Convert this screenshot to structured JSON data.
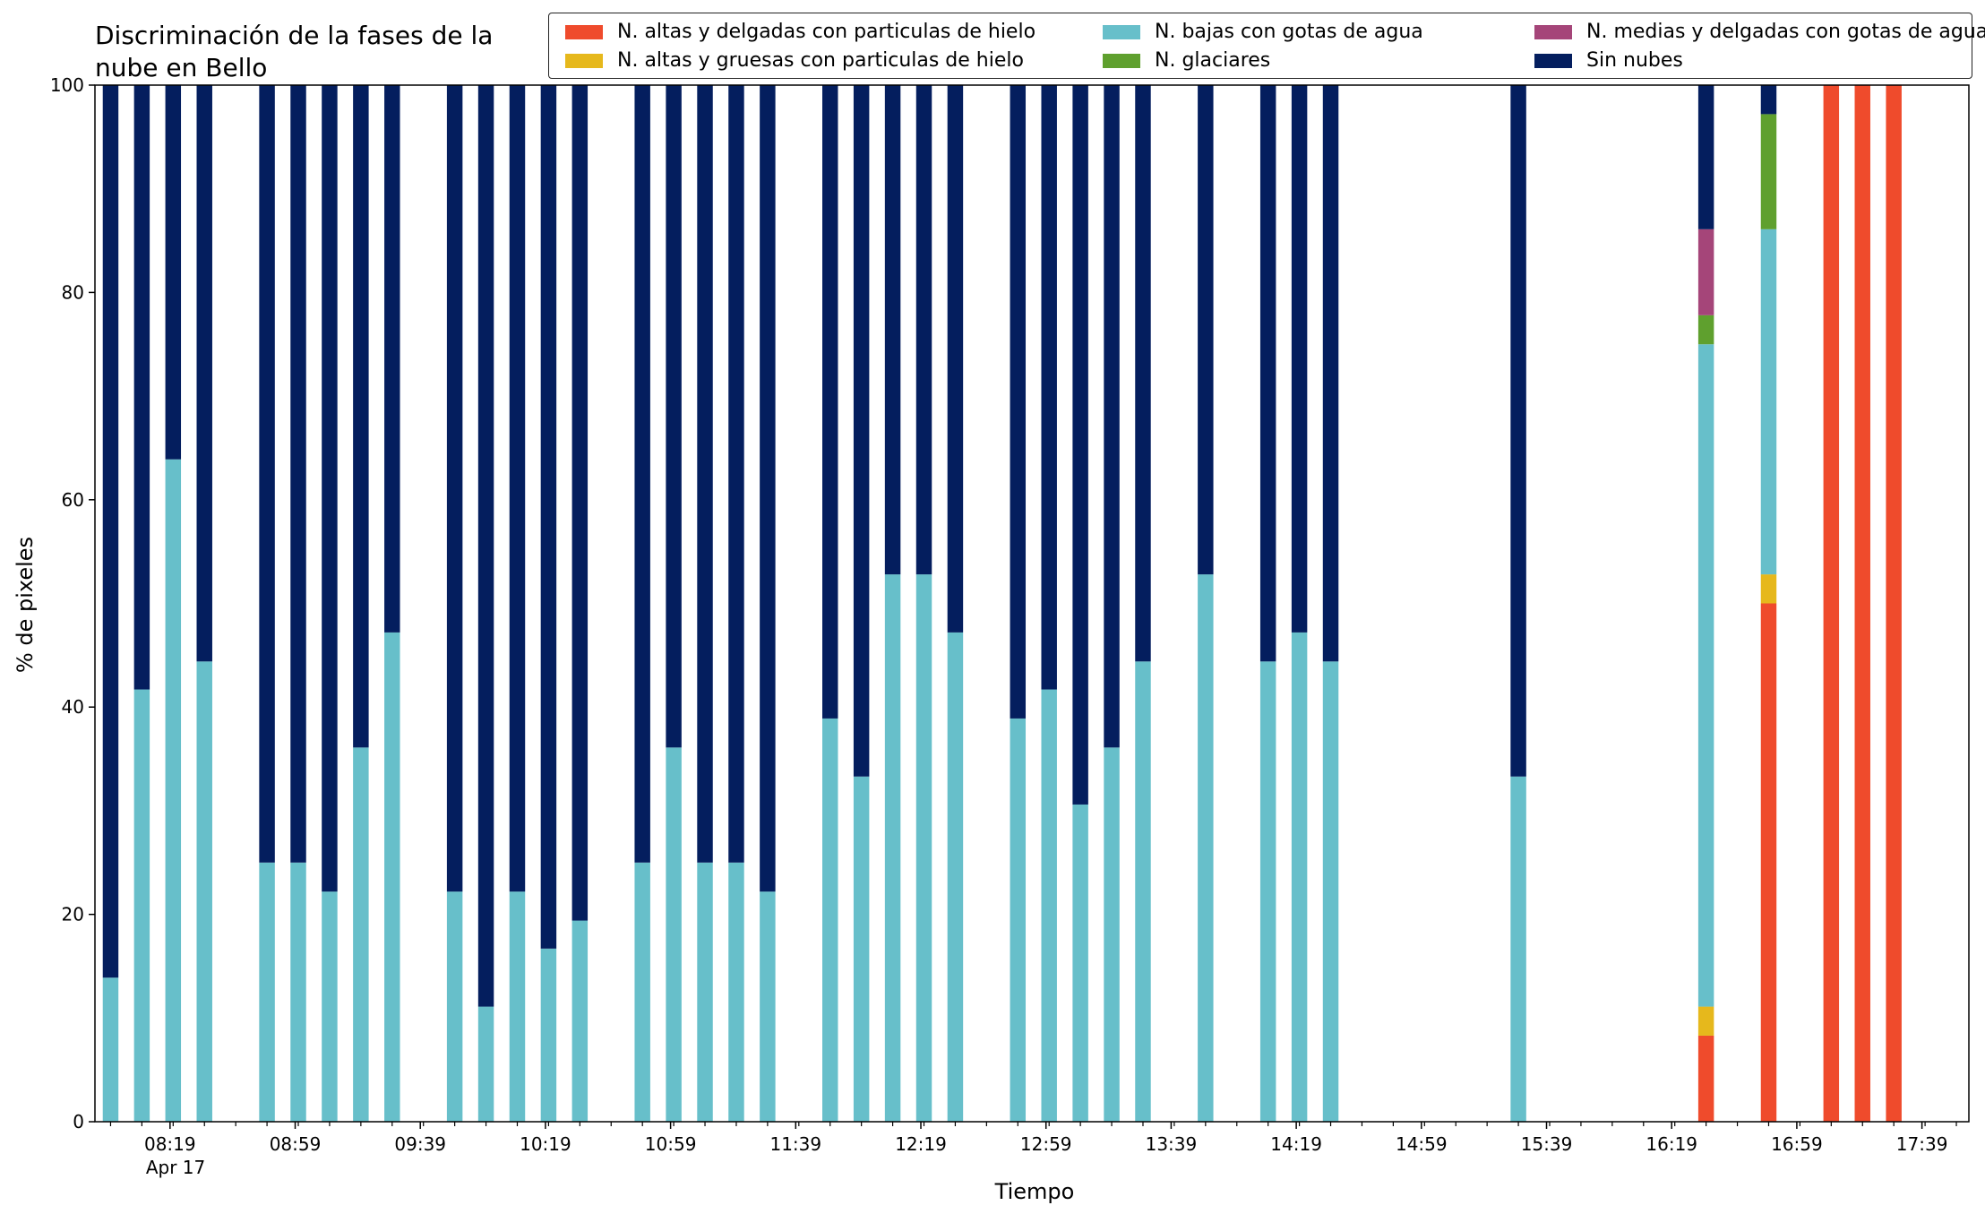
{
  "title": "Discriminación de la fases de la\nnube en Bello",
  "chart_data": {
    "type": "bar",
    "stacked": true,
    "title": "Discriminación de la fases de la\nnube en Bello",
    "xlabel": "Tiempo",
    "ylabel": "% de pixeles",
    "ylim": [
      0,
      100
    ],
    "yticks": [
      0,
      20,
      40,
      60,
      80,
      100
    ],
    "xlim_minutes": [
      475,
      1074
    ],
    "xticks": [
      {
        "label": "08:19",
        "sub": "Apr 17",
        "minute": 499
      },
      {
        "label": "08:59",
        "minute": 539
      },
      {
        "label": "09:39",
        "minute": 579
      },
      {
        "label": "10:19",
        "minute": 619
      },
      {
        "label": "10:59",
        "minute": 659
      },
      {
        "label": "11:39",
        "minute": 699
      },
      {
        "label": "12:19",
        "minute": 739
      },
      {
        "label": "12:59",
        "minute": 779
      },
      {
        "label": "13:39",
        "minute": 819
      },
      {
        "label": "14:19",
        "minute": 859
      },
      {
        "label": "14:59",
        "minute": 899
      },
      {
        "label": "15:39",
        "minute": 939
      },
      {
        "label": "16:19",
        "minute": 979
      },
      {
        "label": "16:59",
        "minute": 1019
      },
      {
        "label": "17:39",
        "minute": 1059
      }
    ],
    "minor_tick_step_minutes": 10,
    "bar_width_minutes": 5,
    "legend_position": "top-right",
    "series": [
      {
        "name": "N. altas y delgadas con particulas de hielo",
        "color": "#ef4b2c"
      },
      {
        "name": "N. altas y gruesas con particulas de hielo",
        "color": "#e6b81c"
      },
      {
        "name": "N. bajas con gotas de agua",
        "color": "#67bfca"
      },
      {
        "name": "N. glaciares",
        "color": "#5fa02e"
      },
      {
        "name": "N. medias y delgadas con gotas de agua",
        "color": "#a54579"
      },
      {
        "name": "Sin nubes",
        "color": "#041e5e"
      }
    ],
    "bars": [
      {
        "minute": 480,
        "values": [
          0,
          0,
          13.9,
          0,
          0,
          86.1
        ]
      },
      {
        "minute": 490,
        "values": [
          0,
          0,
          41.7,
          0,
          0,
          58.3
        ]
      },
      {
        "minute": 500,
        "values": [
          0,
          0,
          63.9,
          0,
          0,
          36.1
        ]
      },
      {
        "minute": 510,
        "values": [
          0,
          0,
          44.4,
          0,
          0,
          55.6
        ]
      },
      {
        "minute": 530,
        "values": [
          0,
          0,
          25,
          0,
          0,
          75
        ]
      },
      {
        "minute": 540,
        "values": [
          0,
          0,
          25,
          0,
          0,
          75
        ]
      },
      {
        "minute": 550,
        "values": [
          0,
          0,
          22.2,
          0,
          0,
          77.8
        ]
      },
      {
        "minute": 560,
        "values": [
          0,
          0,
          36.1,
          0,
          0,
          63.9
        ]
      },
      {
        "minute": 570,
        "values": [
          0,
          0,
          47.2,
          0,
          0,
          52.8
        ]
      },
      {
        "minute": 590,
        "values": [
          0,
          0,
          22.2,
          0,
          0,
          77.8
        ]
      },
      {
        "minute": 600,
        "values": [
          0,
          0,
          11.1,
          0,
          0,
          88.9
        ]
      },
      {
        "minute": 610,
        "values": [
          0,
          0,
          22.2,
          0,
          0,
          77.8
        ]
      },
      {
        "minute": 620,
        "values": [
          0,
          0,
          16.7,
          0,
          0,
          83.3
        ]
      },
      {
        "minute": 630,
        "values": [
          0,
          0,
          19.4,
          0,
          0,
          80.6
        ]
      },
      {
        "minute": 650,
        "values": [
          0,
          0,
          25,
          0,
          0,
          75
        ]
      },
      {
        "minute": 660,
        "values": [
          0,
          0,
          36.1,
          0,
          0,
          63.9
        ]
      },
      {
        "minute": 670,
        "values": [
          0,
          0,
          25,
          0,
          0,
          75
        ]
      },
      {
        "minute": 680,
        "values": [
          0,
          0,
          25,
          0,
          0,
          75
        ]
      },
      {
        "minute": 690,
        "values": [
          0,
          0,
          22.2,
          0,
          0,
          77.8
        ]
      },
      {
        "minute": 710,
        "values": [
          0,
          0,
          38.9,
          0,
          0,
          61.1
        ]
      },
      {
        "minute": 720,
        "values": [
          0,
          0,
          33.3,
          0,
          0,
          66.7
        ]
      },
      {
        "minute": 730,
        "values": [
          0,
          0,
          52.8,
          0,
          0,
          47.2
        ]
      },
      {
        "minute": 740,
        "values": [
          0,
          0,
          52.8,
          0,
          0,
          47.2
        ]
      },
      {
        "minute": 750,
        "values": [
          0,
          0,
          47.2,
          0,
          0,
          52.8
        ]
      },
      {
        "minute": 770,
        "values": [
          0,
          0,
          38.9,
          0,
          0,
          61.1
        ]
      },
      {
        "minute": 780,
        "values": [
          0,
          0,
          41.7,
          0,
          0,
          58.3
        ]
      },
      {
        "minute": 790,
        "values": [
          0,
          0,
          30.6,
          0,
          0,
          69.4
        ]
      },
      {
        "minute": 800,
        "values": [
          0,
          0,
          36.1,
          0,
          0,
          63.9
        ]
      },
      {
        "minute": 810,
        "values": [
          0,
          0,
          44.4,
          0,
          0,
          55.6
        ]
      },
      {
        "minute": 830,
        "values": [
          0,
          0,
          52.8,
          0,
          0,
          47.2
        ]
      },
      {
        "minute": 850,
        "values": [
          0,
          0,
          44.4,
          0,
          0,
          55.6
        ]
      },
      {
        "minute": 860,
        "values": [
          0,
          0,
          47.2,
          0,
          0,
          52.8
        ]
      },
      {
        "minute": 870,
        "values": [
          0,
          0,
          44.4,
          0,
          0,
          55.6
        ]
      },
      {
        "minute": 930,
        "values": [
          0,
          0,
          33.3,
          0,
          0,
          66.7
        ]
      },
      {
        "minute": 990,
        "values": [
          8.3,
          2.8,
          63.9,
          2.8,
          8.3,
          13.9
        ]
      },
      {
        "minute": 1010,
        "values": [
          50,
          2.8,
          33.3,
          11.1,
          0,
          2.8
        ]
      },
      {
        "minute": 1030,
        "values": [
          100,
          0,
          0,
          0,
          0,
          0
        ]
      },
      {
        "minute": 1040,
        "values": [
          100,
          0,
          0,
          0,
          0,
          0
        ]
      },
      {
        "minute": 1050,
        "values": [
          100,
          0,
          0,
          0,
          0,
          0
        ]
      }
    ]
  }
}
